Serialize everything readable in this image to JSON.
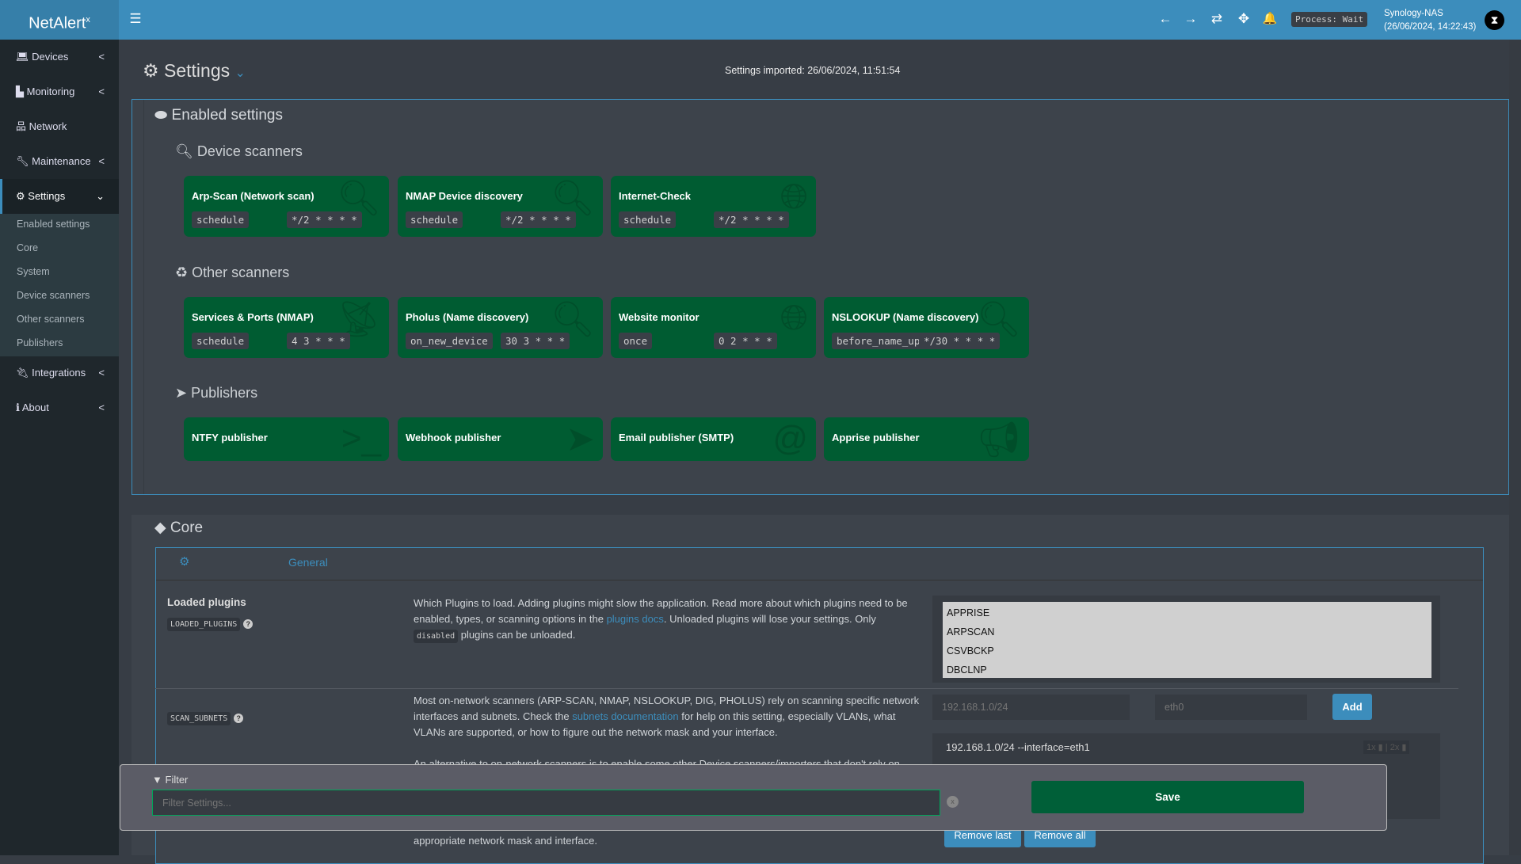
{
  "app": {
    "logo": "NetAlert",
    "logo_sup": "x"
  },
  "header": {
    "process": "Process: Wait",
    "host": "Synology-NAS",
    "datetime": "(26/06/2024, 14:22:43)"
  },
  "sidebar": {
    "items": [
      {
        "label": "Devices",
        "icon": "laptop-icon",
        "chev": "<"
      },
      {
        "label": "Monitoring",
        "icon": "chart-icon",
        "chev": "<"
      },
      {
        "label": "Network",
        "icon": "sitemap-icon",
        "chev": ""
      },
      {
        "label": "Maintenance",
        "icon": "wrench-icon",
        "chev": "<"
      },
      {
        "label": "Settings",
        "icon": "gear-icon",
        "chev": "⌄"
      },
      {
        "label": "Integrations",
        "icon": "plug-icon",
        "chev": "<"
      },
      {
        "label": "About",
        "icon": "info-icon",
        "chev": "<"
      }
    ],
    "sub": [
      "Enabled settings",
      "Core",
      "System",
      "Device scanners",
      "Other scanners",
      "Publishers"
    ]
  },
  "page": {
    "title": "Settings",
    "imported": "Settings imported: 26/06/2024, 11:51:54"
  },
  "enabled": {
    "title": "Enabled settings",
    "device_title": "Device scanners",
    "device": [
      {
        "name": "Arp-Scan (Network scan)",
        "a": "schedule",
        "b": "*/2 * * * *",
        "icon": "search-icon"
      },
      {
        "name": "NMAP Device discovery",
        "a": "schedule",
        "b": "*/2 * * * *",
        "icon": "search-icon"
      },
      {
        "name": "Internet-Check",
        "a": "schedule",
        "b": "*/2 * * * *",
        "icon": "globe-icon"
      }
    ],
    "other_title": "Other scanners",
    "other": [
      {
        "name": "Services & Ports (NMAP)",
        "a": "schedule",
        "b": "4 3 * * *",
        "icon": "satellite-dish-icon"
      },
      {
        "name": "Pholus (Name discovery)",
        "a": "on_new_device",
        "b": "30 3 * * *",
        "icon": "search-icon"
      },
      {
        "name": "Website monitor",
        "a": "once",
        "b": "0 2 * * *",
        "icon": "globe-icon"
      },
      {
        "name": "NSLOOKUP (Name discovery)",
        "a": "before_name_updates",
        "b": "*/30 * * * *",
        "icon": "search-icon"
      }
    ],
    "pub_title": "Publishers",
    "pub": [
      {
        "name": "NTFY publisher",
        "icon": "terminal-icon"
      },
      {
        "name": "Webhook publisher",
        "icon": "paper-plane-icon"
      },
      {
        "name": "Email publisher (SMTP)",
        "icon": "at-icon"
      },
      {
        "name": "Apprise publisher",
        "icon": "bullhorn-icon"
      }
    ]
  },
  "core": {
    "title": "Core",
    "tab": "General",
    "loaded": {
      "label": "Loaded plugins",
      "code": "LOADED_PLUGINS",
      "d1": "Which Plugins to load. Adding plugins might slow the application. Read more about which plugins need to be enabled, types, or scanning options in the ",
      "link": "plugins docs",
      "d2": ". Unloaded plugins will lose your settings. Only ",
      "code2": "disabled",
      "d3": " plugins can be unloaded.",
      "options": [
        "APPRISE",
        "ARPSCAN",
        "CSVBCKP",
        "DBCLNP"
      ]
    },
    "subnets": {
      "code": "SCAN_SUBNETS",
      "d1": "Most on-network scanners (ARP-SCAN, NMAP, NSLOOKUP, DIG, PHOLUS) rely on scanning specific network interfaces and subnets. Check the ",
      "link": "subnets documentation",
      "d2": " for help on this setting, especially VLANs, what VLANs are supported, or how to figure out the network mask and your interface.",
      "d4": "An alternative to on-network scanners is to enable some other Device scanners/importers that don't rely on",
      "d5": "appropriate network mask and interface.",
      "ph1": "192.168.1.0/24",
      "ph2": "eth0",
      "add": "Add",
      "item": "192.168.1.0/24 --interface=eth1",
      "x1": "1x",
      "x2": "2x",
      "remove_last": "Remove last",
      "remove_all": "Remove all"
    }
  },
  "filter": {
    "label": "Filter",
    "placeholder": "Filter Settings...",
    "clear": "x",
    "save": "Save"
  }
}
